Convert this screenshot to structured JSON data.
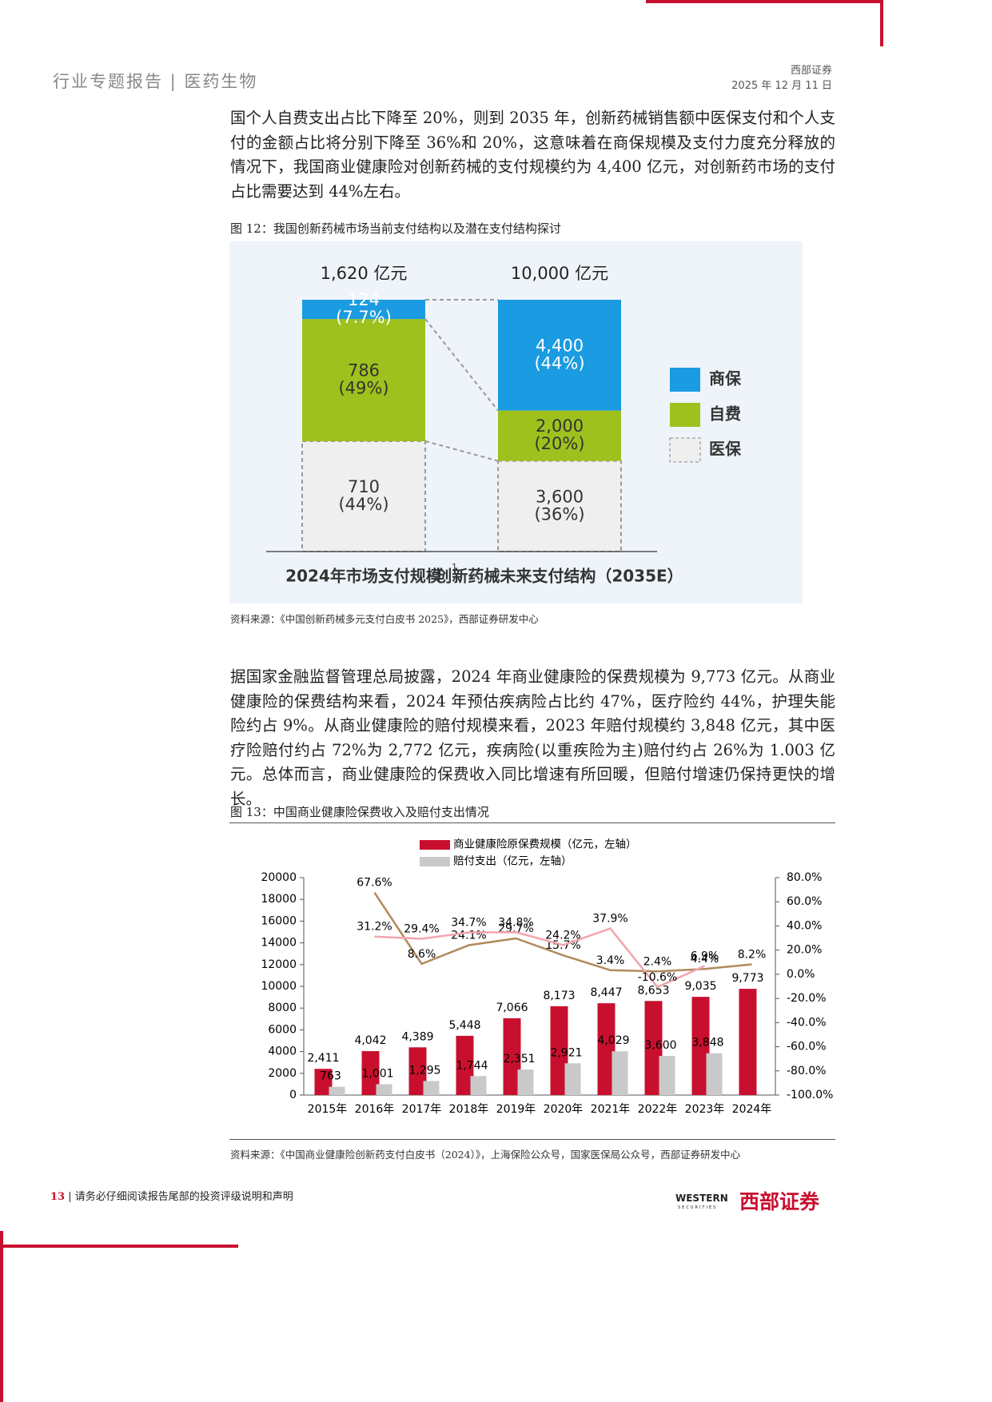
{
  "header": {
    "title": "行业专题报告",
    "section": "医药生物",
    "company": "西部证券",
    "date": "2025 年 12 月 11 日"
  },
  "paragraphs": [
    "国个人自费支出占比下降至 20%，则到 2035 年，创新药械销售额中医保支付和个人支付的金额占比将分别下降至 36%和 20%，这意味着在商保规模及支付力度充分释放的情况下，我国商业健康险对创新药械的支付规模约为 4,400 亿元，对创新药市场的支付占比需要达到 44%左右。",
    "据国家金融监督管理总局披露，2024 年商业健康险的保费规模为 9,773 亿元。从商业健康险的保费结构来看，2024 年预估疾病险占比约 47%，医疗险约 44%，护理失能险约占 9%。从商业健康险的赔付规模来看，2023 年赔付规模约 3,848 亿元，其中医疗险赔付约占 72%为 2,772 亿元，疾病险(以重疾险为主)赔付约占 26%为 1.003 亿元。总体而言，商业健康险的保费收入同比增速有所回暖，但赔付增速仍保持更快的增长。"
  ],
  "figures": [
    {
      "caption": "图 12：我国创新药械市场当前支付结构以及潜在支付结构探讨",
      "source": "资料来源：《中国创新药械多元支付白皮书 2025》，西部证券研发中心"
    },
    {
      "caption": "图 13：中国商业健康险保费收入及赔付支出情况",
      "source": "资料来源：《中国商业健康险创新药支付白皮书（2024）》，上海保险公众号，国家医保局公众号，西部证券研发中心"
    }
  ],
  "footer": {
    "page": "13",
    "note": "请务必仔细阅读报告尾部的投资评级说明和声明",
    "logo_en": "WESTERN",
    "logo_sub": "SECURITIES",
    "logo_cn": "西部证券"
  },
  "chart_data": [
    {
      "type": "bar",
      "stacking": "percent",
      "categories": [
        "2024年市场支付规模",
        "创新药械未来支付结构（2035E）"
      ],
      "footnote": "1",
      "totals": [
        1620,
        10000
      ],
      "total_labels": [
        "1,620 亿元",
        "10,000 亿元"
      ],
      "series": [
        {
          "name": "商保",
          "color": "#1b9be1",
          "label_color": "#ffffff",
          "values": [
            124,
            4400
          ],
          "value_labels": [
            "124",
            "4,400"
          ],
          "share_labels": [
            "(7.7%)",
            "(44%)"
          ]
        },
        {
          "name": "自费",
          "color": "#9ec11d",
          "label_color": "#333333",
          "values": [
            786,
            2000
          ],
          "value_labels": [
            "786",
            "2,000"
          ],
          "share_labels": [
            "(49%)",
            "(20%)"
          ]
        },
        {
          "name": "医保",
          "color": "#efefef",
          "border": "dashed",
          "label_color": "#333333",
          "values": [
            710,
            3600
          ],
          "value_labels": [
            "710",
            "3,600"
          ],
          "share_labels": [
            "(44%)",
            "(36%)"
          ]
        }
      ]
    },
    {
      "type": "combo",
      "categories": [
        "2015年",
        "2016年",
        "2017年",
        "2018年",
        "2019年",
        "2020年",
        "2021年",
        "2022年",
        "2023年",
        "2024年"
      ],
      "ylim": [
        0,
        20000
      ],
      "yticks": [
        0,
        2000,
        4000,
        6000,
        8000,
        10000,
        12000,
        14000,
        16000,
        18000,
        20000
      ],
      "y2lim": [
        -100,
        80
      ],
      "y2ticks": [
        {
          "value": -100,
          "label": "-100.0%"
        },
        {
          "value": -80,
          "label": "-80.0%"
        },
        {
          "value": -60,
          "label": "-60.0%"
        },
        {
          "value": -40,
          "label": "-40.0%"
        },
        {
          "value": -20,
          "label": "-20.0%"
        },
        {
          "value": 0,
          "label": "0.0%"
        },
        {
          "value": 20,
          "label": "20.0%"
        },
        {
          "value": 40,
          "label": "40.0%"
        },
        {
          "value": 60,
          "label": "60.0%"
        },
        {
          "value": 80,
          "label": "80.0%"
        }
      ],
      "series": [
        {
          "type": "bar",
          "name": "商业健康险原保费规模（亿元，左轴）",
          "color": "#c8102e",
          "values": [
            2411,
            4042,
            4389,
            5448,
            7066,
            8173,
            8447,
            8653,
            9035,
            9773
          ],
          "value_labels": [
            "2,411",
            "4,042",
            "4,389",
            "5,448",
            "7,066",
            "8,173",
            "8,447",
            "8,653",
            "9,035",
            "9,773"
          ]
        },
        {
          "type": "bar",
          "name": "赔付支出（亿元，左轴）",
          "color": "#c9c9c9",
          "values": [
            763,
            1001,
            1295,
            1744,
            2351,
            2921,
            4029,
            3600,
            3848,
            null
          ],
          "value_labels": [
            "763",
            "1,001",
            "1,295",
            "1,744",
            "2,351",
            "2,921",
            "4,029",
            "3,600",
            "3,848",
            null
          ]
        },
        {
          "type": "line",
          "axis": "y2",
          "color": "#b0895c",
          "values": [
            null,
            67.6,
            8.6,
            24.1,
            29.7,
            15.7,
            3.4,
            2.4,
            4.4,
            8.2
          ],
          "value_labels": [
            null,
            "67.6%",
            "8.6%",
            "24.1%",
            "29.7%",
            "15.7%",
            "3.4%",
            "2.4%",
            "4.4%",
            "8.2%"
          ]
        },
        {
          "type": "line",
          "axis": "y2",
          "color": "#f1a5ad",
          "values": [
            null,
            31.2,
            29.4,
            34.7,
            34.8,
            24.2,
            37.9,
            -10.6,
            6.9,
            null
          ],
          "value_labels": [
            null,
            "31.2%",
            "29.4%",
            "34.7%",
            "34.8%",
            "24.2%",
            "37.9%",
            "-10.6%",
            "6.9%",
            null
          ]
        }
      ]
    }
  ]
}
